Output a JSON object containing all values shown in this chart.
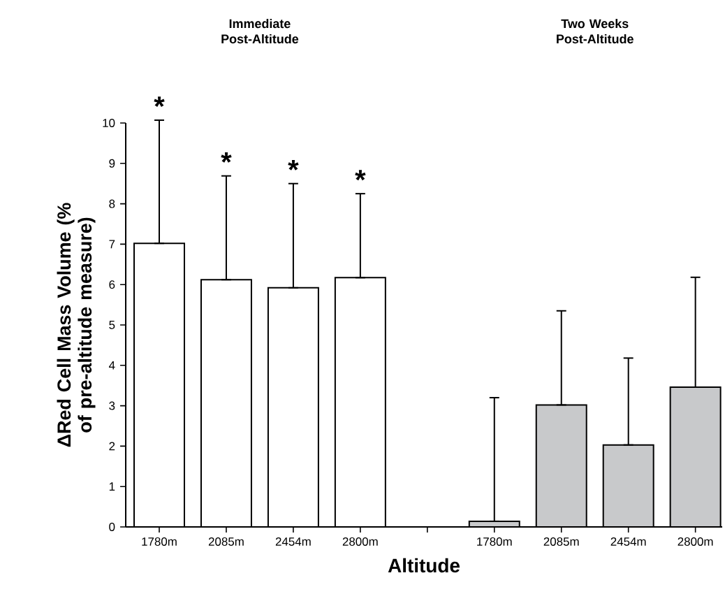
{
  "chart_data": {
    "type": "bar",
    "xlabel": "Altitude",
    "ylabel": "ΔRed Cell Mass Volume (% of pre-altitude measure)",
    "categories": [
      "1780m",
      "2085m",
      "2454m",
      "2800m",
      null,
      "1780m",
      "2085m",
      "2454m",
      "2800m"
    ],
    "values": [
      7.02,
      6.12,
      5.92,
      6.17,
      null,
      0.14,
      3.02,
      2.03,
      3.46
    ],
    "colors": [
      "#ffffff",
      "#ffffff",
      "#ffffff",
      "#ffffff",
      "#ffffff",
      "#c8c9cb",
      "#c8c9cb",
      "#c8c9cb",
      "#c8c9cb"
    ],
    "errors": [
      [
        7.02,
        10.07
      ],
      [
        6.12,
        8.69
      ],
      [
        5.92,
        8.5
      ],
      [
        6.17,
        8.25
      ],
      null,
      [
        0.14,
        3.2
      ],
      [
        3.02,
        5.35
      ],
      [
        2.03,
        4.18
      ],
      [
        3.46,
        6.18
      ]
    ],
    "ylim": [
      0,
      10
    ],
    "yticks": [
      0,
      1,
      2,
      3,
      4,
      5,
      6,
      7,
      8,
      9,
      10
    ],
    "annotations": [
      "Immediate Post-Altitude",
      "Two Weeks Post-Altitude",
      "*",
      "*",
      "*",
      "*"
    ],
    "grid": false
  }
}
